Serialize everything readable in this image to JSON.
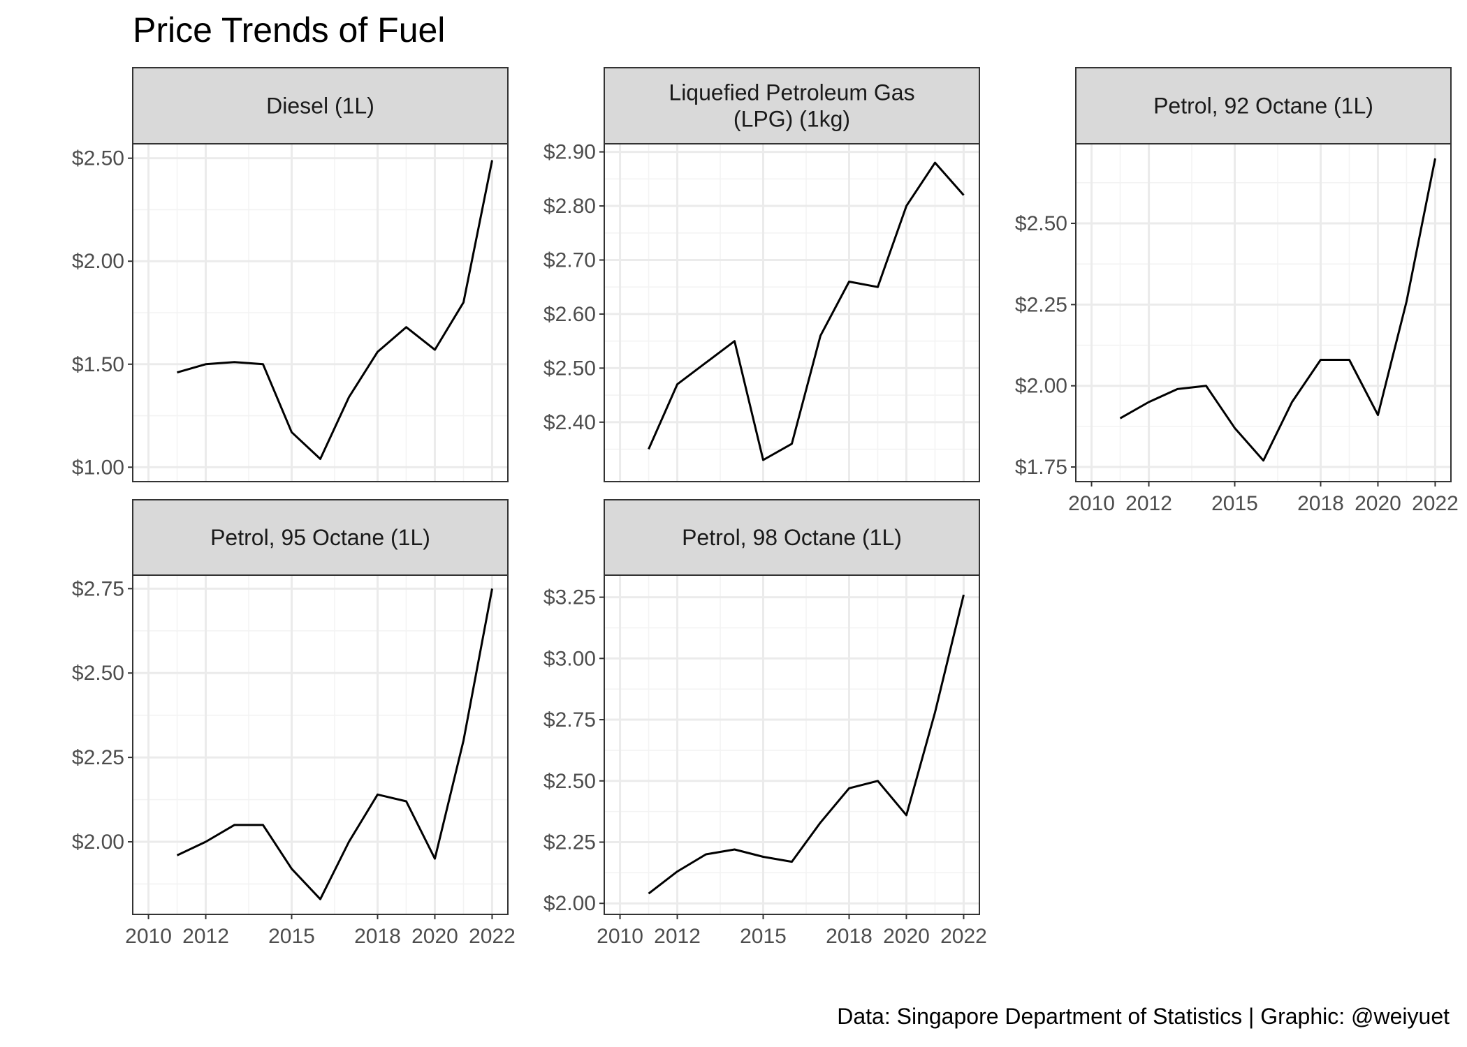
{
  "title": "Price Trends of Fuel",
  "caption": "Data: Singapore Department of Statistics | Graphic: @weiyuet",
  "colors": {
    "line": "#000000",
    "strip_fill": "#d9d9d9",
    "panel_border": "#333333",
    "grid_major": "#ebebeb",
    "grid_minor": "#f3f3f3"
  },
  "chart_data": [
    {
      "type": "line",
      "facet": [
        "Diesel (1L)"
      ],
      "x": [
        2011,
        2012,
        2013,
        2014,
        2015,
        2016,
        2017,
        2018,
        2019,
        2020,
        2021,
        2022
      ],
      "values": [
        1.46,
        1.5,
        1.51,
        1.5,
        1.17,
        1.04,
        1.34,
        1.56,
        1.68,
        1.57,
        1.8,
        2.49
      ],
      "xlim": [
        2010,
        2022
      ],
      "ylim": [
        1.0,
        2.5
      ],
      "x_ticks": [
        "2010",
        "2012",
        "2015",
        "2018",
        "2020",
        "2022"
      ],
      "y_ticks": [
        "$1.00",
        "$1.50",
        "$2.00",
        "$2.50"
      ],
      "grid": true
    },
    {
      "type": "line",
      "facet": [
        "Liquefied Petroleum Gas",
        "(LPG) (1kg)"
      ],
      "x": [
        2011,
        2012,
        2013,
        2014,
        2015,
        2016,
        2017,
        2018,
        2019,
        2020,
        2021,
        2022
      ],
      "values": [
        2.35,
        2.47,
        2.51,
        2.55,
        2.33,
        2.36,
        2.56,
        2.66,
        2.65,
        2.8,
        2.88,
        2.82
      ],
      "xlim": [
        2010,
        2022
      ],
      "ylim": [
        2.4,
        2.9
      ],
      "x_ticks": [
        "2010",
        "2012",
        "2015",
        "2018",
        "2020",
        "2022"
      ],
      "y_ticks": [
        "$2.40",
        "$2.50",
        "$2.60",
        "$2.70",
        "$2.80",
        "$2.90"
      ],
      "grid": true
    },
    {
      "type": "line",
      "facet": [
        "Petrol, 92 Octane (1L)"
      ],
      "x": [
        2011,
        2012,
        2013,
        2014,
        2015,
        2016,
        2017,
        2018,
        2019,
        2020,
        2021,
        2022
      ],
      "values": [
        1.9,
        1.95,
        1.99,
        2.0,
        1.87,
        1.77,
        1.95,
        2.08,
        2.08,
        1.91,
        2.26,
        2.7
      ],
      "xlim": [
        2010,
        2022
      ],
      "ylim": [
        1.75,
        2.5
      ],
      "x_ticks": [
        "2010",
        "2012",
        "2015",
        "2018",
        "2020",
        "2022"
      ],
      "y_ticks": [
        "$1.75",
        "$2.00",
        "$2.25",
        "$2.50"
      ],
      "grid": true
    },
    {
      "type": "line",
      "facet": [
        "Petrol, 95 Octane (1L)"
      ],
      "x": [
        2011,
        2012,
        2013,
        2014,
        2015,
        2016,
        2017,
        2018,
        2019,
        2020,
        2021,
        2022
      ],
      "values": [
        1.96,
        2.0,
        2.05,
        2.05,
        1.92,
        1.83,
        2.0,
        2.14,
        2.12,
        1.95,
        2.3,
        2.75
      ],
      "xlim": [
        2010,
        2022
      ],
      "ylim": [
        2.0,
        2.75
      ],
      "x_ticks": [
        "2010",
        "2012",
        "2015",
        "2018",
        "2020",
        "2022"
      ],
      "y_ticks": [
        "$2.00",
        "$2.25",
        "$2.50",
        "$2.75"
      ],
      "grid": true
    },
    {
      "type": "line",
      "facet": [
        "Petrol, 98 Octane (1L)"
      ],
      "x": [
        2011,
        2012,
        2013,
        2014,
        2015,
        2016,
        2017,
        2018,
        2019,
        2020,
        2021,
        2022
      ],
      "values": [
        2.04,
        2.13,
        2.2,
        2.22,
        2.19,
        2.17,
        2.33,
        2.47,
        2.5,
        2.36,
        2.78,
        3.26
      ],
      "xlim": [
        2010,
        2022
      ],
      "ylim": [
        2.0,
        3.25
      ],
      "x_ticks": [
        "2010",
        "2012",
        "2015",
        "2018",
        "2020",
        "2022"
      ],
      "y_ticks": [
        "$2.00",
        "$2.25",
        "$2.50",
        "$2.75",
        "$3.00",
        "$3.25"
      ],
      "grid": true
    }
  ]
}
